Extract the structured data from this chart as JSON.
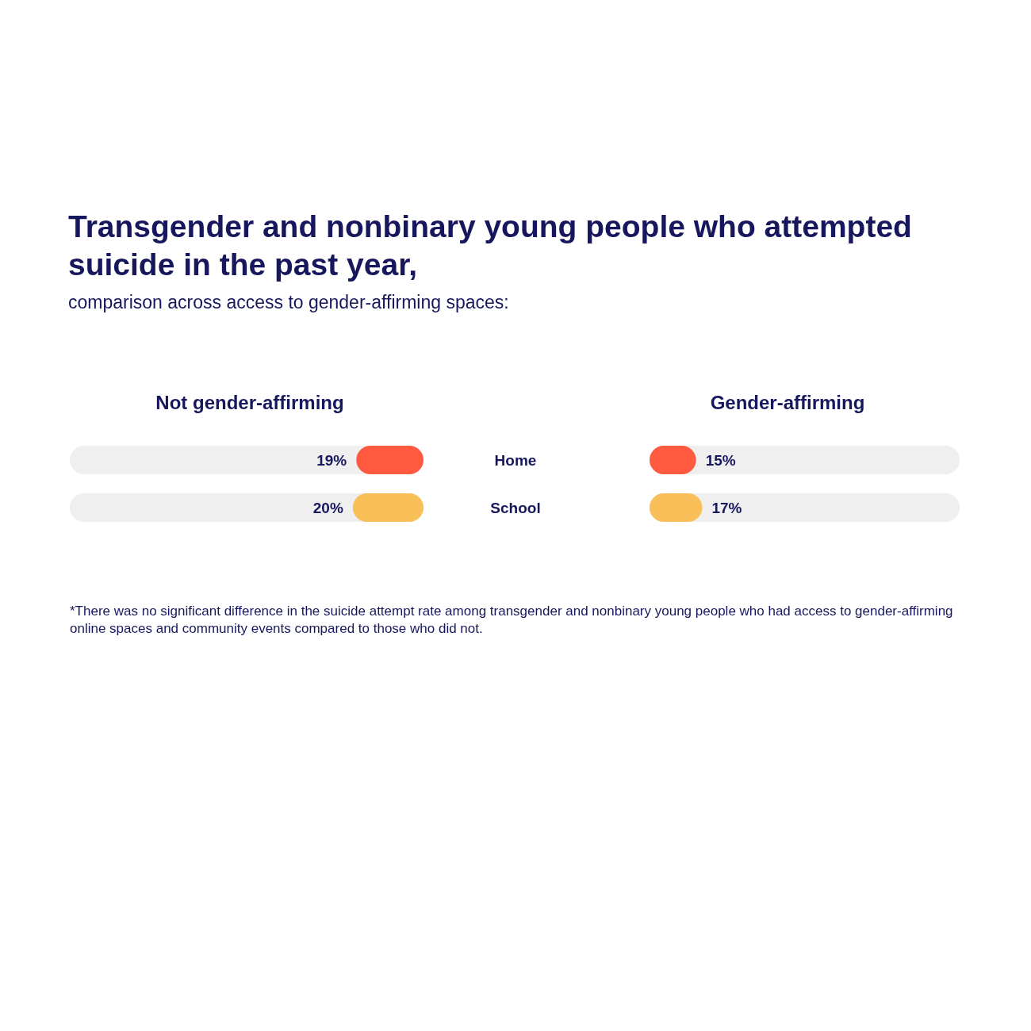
{
  "chart_data": [
    {
      "type": "other",
      "title": "Transgender and nonbinary young people who attempted suicide in the past year,",
      "subtitle": "comparison across access to gender-affirming spaces:",
      "annotations": [
        "*There was no significant difference in the suicide attempt rate among transgender and nonbinary young people who had access to gender-affirming online spaces and community events compared to those who did not."
      ]
    },
    {
      "type": "bar",
      "orientation": "horizontal",
      "title": "Not gender-affirming",
      "categories": [
        "Home",
        "School"
      ],
      "values": [
        19,
        20
      ],
      "value_labels": [
        "19%",
        "20%"
      ],
      "colors": [
        "#ff5a3f",
        "#f9c05a"
      ],
      "xlim": [
        100,
        0
      ]
    },
    {
      "type": "bar",
      "orientation": "horizontal",
      "title": "Gender-affirming",
      "categories": [
        null,
        null
      ],
      "values": [
        15,
        17
      ],
      "value_labels": [
        "15%",
        "17%"
      ],
      "colors": [
        "#ff5a3f",
        "#f9c05a"
      ],
      "xlim": [
        0,
        100
      ]
    }
  ]
}
